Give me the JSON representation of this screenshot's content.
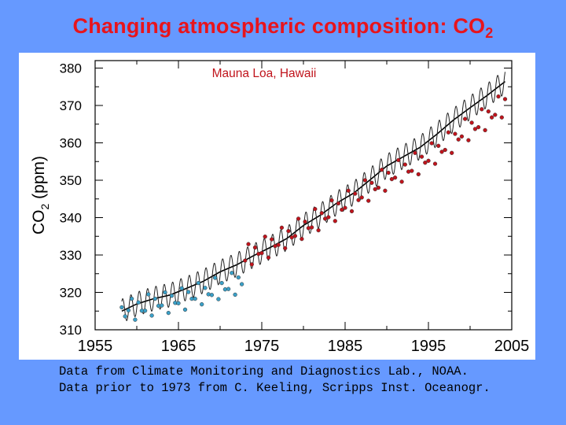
{
  "slide": {
    "title": "Changing atmospheric composition: CO",
    "title_subscript": "2",
    "credit_line_1": "Data from Climate Monitoring and Diagnostics Lab., NOAA.",
    "credit_line_2": "Data prior to 1973 from C. Keeling, Scripps Inst. Oceanogr."
  },
  "colors": {
    "background": "#6699ff",
    "title": "#e8141c",
    "panel": "#ffffff",
    "series_keeling": "#3aa0c8",
    "series_noaa": "#c0141c",
    "smoothed_trend": "#000000",
    "site_label": "#c0141c"
  },
  "chart_data": {
    "type": "line",
    "annotation": "Mauna Loa, Hawaii",
    "ylabel": "CO",
    "ylabel_subscript": "2",
    "ylabel_unit": " (ppm)",
    "xlabel": "",
    "xlim": [
      1955,
      2005
    ],
    "ylim": [
      310,
      382
    ],
    "xticks": [
      1955,
      1965,
      1975,
      1985,
      1995,
      2005
    ],
    "yticks": [
      310,
      320,
      330,
      340,
      350,
      360,
      370,
      380
    ],
    "grid": false,
    "seasonal_amplitude_ppm": 3.2,
    "series": [
      {
        "name": "",
        "source_note": "Keeling (pre-1973)",
        "x": [
          1958.2,
          1958.6,
          1959.0,
          1959.4,
          1959.8,
          1960.2,
          1960.6,
          1961.0,
          1961.4,
          1961.8,
          1962.2,
          1962.6,
          1963.0,
          1963.4,
          1963.8,
          1964.2,
          1964.6,
          1965.0,
          1965.4,
          1965.8,
          1966.2,
          1966.6,
          1967.0,
          1967.4,
          1967.8,
          1968.2,
          1968.6,
          1969.0,
          1969.4,
          1969.8,
          1970.2,
          1970.6,
          1971.0,
          1971.4,
          1971.8,
          1972.2,
          1972.6
        ],
        "y": [
          316.0,
          313.6,
          315.2,
          318.3,
          312.7,
          317.3,
          315.1,
          315.1,
          319.5,
          313.8,
          318.3,
          316.4,
          316.5,
          320.0,
          314.5,
          319.1,
          317.2,
          317.1,
          321.1,
          315.4,
          320.1,
          318.3,
          318.3,
          322.5,
          316.8,
          321.2,
          319.5,
          319.3,
          323.9,
          318.2,
          322.5,
          320.8,
          320.9,
          325.2,
          319.4,
          324.0,
          322.2
        ]
      },
      {
        "name": "",
        "source_note": "NOAA CMDL",
        "x": [
          1973.0,
          1973.4,
          1973.8,
          1974.2,
          1974.6,
          1975.0,
          1975.4,
          1975.8,
          1976.2,
          1976.6,
          1977.0,
          1977.4,
          1977.8,
          1978.2,
          1978.6,
          1979.0,
          1979.4,
          1979.8,
          1980.2,
          1980.6,
          1981.0,
          1981.4,
          1981.8,
          1982.2,
          1982.6,
          1983.0,
          1983.4,
          1983.8,
          1984.2,
          1984.6,
          1985.0,
          1985.4,
          1985.8,
          1986.2,
          1986.6,
          1987.0,
          1987.4,
          1987.8,
          1988.2,
          1988.6,
          1989.0,
          1989.4,
          1989.8,
          1990.2,
          1990.6,
          1991.0,
          1991.4,
          1991.8,
          1992.2,
          1992.6,
          1993.0,
          1993.4,
          1993.8,
          1994.2,
          1994.6,
          1995.0,
          1995.4,
          1995.8,
          1996.2,
          1996.6,
          1997.0,
          1997.4,
          1997.8,
          1998.2,
          1998.6,
          1999.0,
          1999.4,
          1999.8,
          2000.2,
          2000.6,
          2001.0,
          2001.4,
          2001.8,
          2002.2,
          2002.6,
          2003.0,
          2003.4,
          2003.8,
          2004.2
        ],
        "y": [
          328.5,
          332.9,
          327.5,
          332.0,
          330.3,
          330.5,
          334.9,
          329.3,
          334.2,
          332.4,
          332.7,
          337.3,
          331.8,
          336.4,
          334.7,
          335.1,
          339.7,
          334.3,
          338.9,
          337.2,
          337.4,
          342.3,
          336.6,
          341.2,
          339.7,
          340.1,
          344.6,
          339.1,
          343.8,
          342.1,
          342.6,
          347.2,
          341.7,
          346.4,
          344.7,
          345.4,
          350.0,
          344.5,
          349.3,
          347.6,
          348.0,
          352.8,
          347.2,
          352.0,
          350.3,
          350.7,
          355.4,
          349.6,
          354.2,
          352.3,
          352.5,
          357.3,
          351.6,
          356.3,
          354.7,
          355.2,
          359.9,
          354.4,
          359.2,
          357.6,
          358.1,
          362.8,
          357.3,
          362.4,
          360.9,
          361.7,
          366.4,
          360.7,
          365.4,
          363.7,
          364.2,
          369.0,
          363.4,
          368.4,
          366.8,
          367.5,
          372.4,
          366.8,
          371.7
        ]
      }
    ],
    "trend": {
      "x": [
        1958.2,
        1960,
        1962,
        1964,
        1966,
        1968,
        1970,
        1972,
        1974,
        1976,
        1978,
        1980,
        1982,
        1984,
        1986,
        1988,
        1990,
        1992,
        1994,
        1996,
        1998,
        2000,
        2002,
        2004.2
      ],
      "y": [
        315.0,
        316.9,
        318.3,
        319.3,
        321.1,
        323.0,
        325.5,
        327.4,
        329.8,
        332.0,
        334.4,
        337.9,
        340.6,
        343.9,
        346.5,
        350.1,
        353.8,
        356.3,
        358.8,
        362.3,
        366.1,
        369.4,
        372.6,
        376.4
      ]
    }
  }
}
